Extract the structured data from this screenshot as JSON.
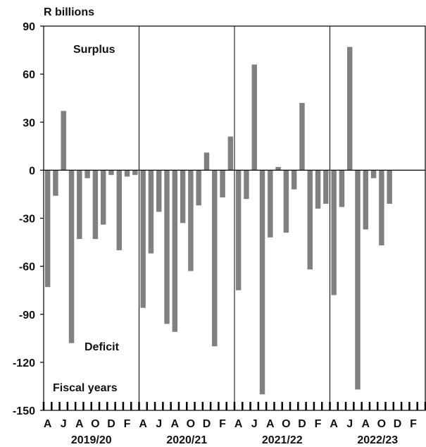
{
  "chart_data": {
    "type": "bar",
    "unit_label": "R billions",
    "ylim": [
      -150,
      90
    ],
    "yticks": [
      90,
      60,
      30,
      0,
      -30,
      -60,
      -90,
      -120,
      -150
    ],
    "ytick_labels": [
      "90",
      "60",
      "30",
      "0",
      "-30",
      "-60",
      "-90",
      "-120",
      "-150"
    ],
    "annotations": {
      "surplus": "Surplus",
      "deficit": "Deficit",
      "fiscal_years": "Fiscal years"
    },
    "month_labels": [
      "A",
      "J",
      "A",
      "O",
      "D",
      "F"
    ],
    "grid": false,
    "bar_color": "#808080",
    "fiscal_years": [
      {
        "label": "2019/20",
        "values": [
          -73,
          -16,
          37,
          -108,
          -43,
          -5,
          -43,
          -34,
          -3,
          -50,
          -4,
          -3
        ]
      },
      {
        "label": "2020/21",
        "values": [
          -86,
          -52,
          -26,
          -96,
          -101,
          -33,
          -63,
          -22,
          11,
          -110,
          -17,
          21
        ]
      },
      {
        "label": "2021/22",
        "values": [
          -75,
          -18,
          66,
          -140,
          -42,
          2,
          -39,
          -12,
          42,
          -62,
          -24,
          -21
        ]
      },
      {
        "label": "2022/23",
        "values": [
          -78,
          -23,
          77,
          -137,
          -37,
          -5,
          -47,
          -21
        ]
      }
    ]
  }
}
